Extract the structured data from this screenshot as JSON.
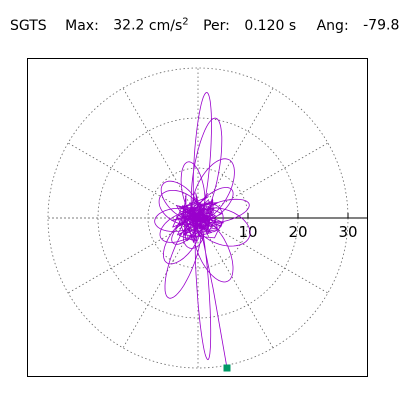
{
  "header": {
    "station": "SGTS",
    "max_label": "Max:",
    "max_value": "32.2",
    "max_unit_base": "cm/s",
    "max_unit_exp": "2",
    "per_label": "Per:",
    "per_value": "0.120 s",
    "ang_label": "Ang:",
    "ang_value": "-79.8"
  },
  "chart_data": {
    "type": "polar-particle-motion",
    "radial_ticks": [
      "10",
      "20",
      "30"
    ],
    "radial_tick_values": [
      10,
      20,
      30
    ],
    "rings": [
      10,
      20,
      30
    ],
    "spokes_deg": [
      0,
      30,
      60,
      90,
      120,
      150,
      180,
      210,
      240,
      270,
      300,
      330
    ],
    "grid": true,
    "series_color": "#9900cc",
    "end_marker_color": "#009966",
    "max_amplitude": 32.2,
    "angle_deg": -79.8,
    "lobes": [
      {
        "angle_deg": 86,
        "major": 26.5,
        "minor": 1.6
      },
      {
        "angle_deg": 94,
        "major": 30.0,
        "minor": 1.2
      },
      {
        "angle_deg": 80,
        "major": 22.0,
        "minor": 2.5
      },
      {
        "angle_deg": 70,
        "major": 17.5,
        "minor": 2.4
      },
      {
        "angle_deg": 62,
        "major": 14.0,
        "minor": 3.2
      },
      {
        "angle_deg": 55,
        "major": 11.5,
        "minor": 2.6
      },
      {
        "angle_deg": 40,
        "major": 10.0,
        "minor": 2.2
      },
      {
        "angle_deg": 28,
        "major": 9.5,
        "minor": 2.5
      },
      {
        "angle_deg": 15,
        "major": 11.0,
        "minor": 2.0
      },
      {
        "angle_deg": 5,
        "major": 9.0,
        "minor": 2.3
      },
      {
        "angle_deg": 150,
        "major": 9.5,
        "minor": 3.0
      },
      {
        "angle_deg": 160,
        "major": 12.0,
        "minor": 3.5
      },
      {
        "angle_deg": 135,
        "major": 10.0,
        "minor": 2.6
      },
      {
        "angle_deg": 115,
        "major": 14.0,
        "minor": 3.0
      },
      {
        "angle_deg": 100,
        "major": 12.0,
        "minor": 2.2
      },
      {
        "angle_deg": 45,
        "major": 7.0,
        "minor": 1.6
      },
      {
        "angle_deg": 0,
        "major": 5.0,
        "minor": 2.8
      },
      {
        "angle_deg": 75,
        "major": 6.0,
        "minor": 2.0
      }
    ],
    "end_point": [
      5.8,
      -30.0
    ]
  }
}
